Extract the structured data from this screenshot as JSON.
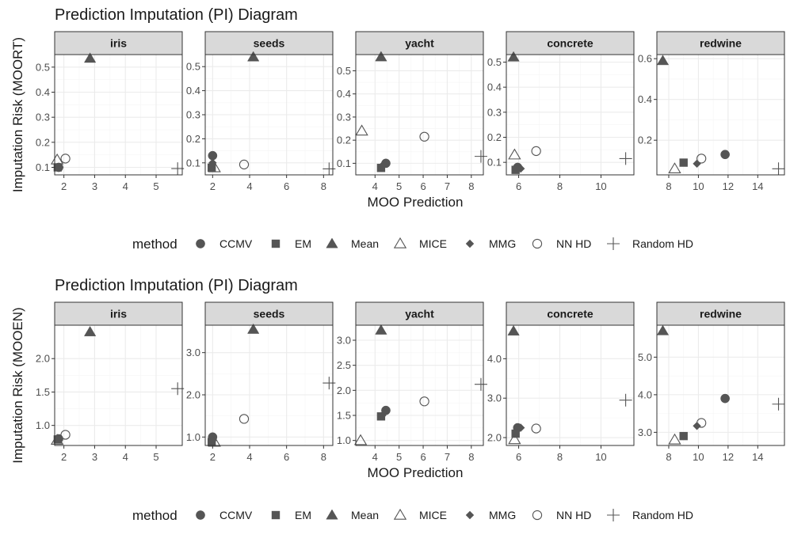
{
  "colors": {
    "point": "#555555",
    "strip": "#d9d9d9",
    "grid": "#ebebeb"
  },
  "legend": {
    "title": "method",
    "items": [
      {
        "label": "CCMV",
        "shape": "circle-filled"
      },
      {
        "label": "EM",
        "shape": "square-filled"
      },
      {
        "label": "Mean",
        "shape": "triangle-filled"
      },
      {
        "label": "MICE",
        "shape": "triangle-open"
      },
      {
        "label": "MMG",
        "shape": "diamond-filled"
      },
      {
        "label": "NN HD",
        "shape": "circle-open"
      },
      {
        "label": "Random HD",
        "shape": "plus"
      }
    ]
  },
  "chart_data": [
    {
      "type": "scatter",
      "title": "Prediction Imputation (PI) Diagram",
      "xlabel": "MOO Prediction",
      "ylabel": "Imputation Risk (MOORT)",
      "facets": [
        {
          "name": "iris",
          "xlim": [
            1.7,
            5.85
          ],
          "ylim": [
            0.07,
            0.55
          ],
          "xticks": [
            2,
            3,
            4,
            5
          ],
          "yticks": [
            0.1,
            0.2,
            0.3,
            0.4,
            0.5
          ],
          "ytick_labels": [
            "0.1",
            "0.2",
            "0.3",
            "0.4",
            "0.5"
          ],
          "points": [
            {
              "method": "CCMV",
              "x": 1.83,
              "y": 0.1
            },
            {
              "method": "EM",
              "x": 1.8,
              "y": 0.1
            },
            {
              "method": "Mean",
              "x": 2.85,
              "y": 0.535
            },
            {
              "method": "MICE",
              "x": 1.78,
              "y": 0.13
            },
            {
              "method": "MMG",
              "x": 1.86,
              "y": 0.1
            },
            {
              "method": "NN HD",
              "x": 2.05,
              "y": 0.135
            },
            {
              "method": "Random HD",
              "x": 5.7,
              "y": 0.095
            }
          ]
        },
        {
          "name": "seeds",
          "xlim": [
            1.6,
            8.5
          ],
          "ylim": [
            0.05,
            0.55
          ],
          "xticks": [
            2,
            4,
            6,
            8
          ],
          "yticks": [
            0.1,
            0.2,
            0.3,
            0.4,
            0.5
          ],
          "ytick_labels": [
            "0.1",
            "0.2",
            "0.3",
            "0.4",
            "0.5"
          ],
          "points": [
            {
              "method": "CCMV",
              "x": 2.0,
              "y": 0.13
            },
            {
              "method": "EM",
              "x": 1.95,
              "y": 0.08
            },
            {
              "method": "Mean",
              "x": 4.2,
              "y": 0.54
            },
            {
              "method": "MICE",
              "x": 2.1,
              "y": 0.08
            },
            {
              "method": "MMG",
              "x": 2.0,
              "y": 0.1
            },
            {
              "method": "NN HD",
              "x": 3.7,
              "y": 0.093
            },
            {
              "method": "Random HD",
              "x": 8.3,
              "y": 0.075
            }
          ]
        },
        {
          "name": "yacht",
          "xlim": [
            3.2,
            8.5
          ],
          "ylim": [
            0.05,
            0.57
          ],
          "xticks": [
            4,
            5,
            6,
            7,
            8
          ],
          "yticks": [
            0.1,
            0.2,
            0.3,
            0.4,
            0.5
          ],
          "ytick_labels": [
            "0.1",
            "0.2",
            "0.3",
            "0.4",
            "0.5"
          ],
          "points": [
            {
              "method": "CCMV",
              "x": 4.45,
              "y": 0.1
            },
            {
              "method": "EM",
              "x": 4.25,
              "y": 0.08
            },
            {
              "method": "Mean",
              "x": 4.25,
              "y": 0.56
            },
            {
              "method": "MICE",
              "x": 3.45,
              "y": 0.24
            },
            {
              "method": "MMG",
              "x": 4.3,
              "y": 0.09
            },
            {
              "method": "NN HD",
              "x": 6.05,
              "y": 0.215
            },
            {
              "method": "Random HD",
              "x": 8.4,
              "y": 0.13
            }
          ]
        },
        {
          "name": "concrete",
          "xlim": [
            5.4,
            11.6
          ],
          "ylim": [
            0.05,
            0.53
          ],
          "xticks": [
            6,
            8,
            10
          ],
          "yticks": [
            0.1,
            0.2,
            0.3,
            0.4,
            0.5
          ],
          "ytick_labels": [
            "0.1",
            "0.2",
            "0.3",
            "0.4",
            "0.5"
          ],
          "points": [
            {
              "method": "CCMV",
              "x": 5.95,
              "y": 0.08
            },
            {
              "method": "EM",
              "x": 5.85,
              "y": 0.07
            },
            {
              "method": "Mean",
              "x": 5.75,
              "y": 0.52
            },
            {
              "method": "MICE",
              "x": 5.8,
              "y": 0.13
            },
            {
              "method": "MMG",
              "x": 6.1,
              "y": 0.075
            },
            {
              "method": "NN HD",
              "x": 6.85,
              "y": 0.145
            },
            {
              "method": "Random HD",
              "x": 11.2,
              "y": 0.115
            }
          ]
        },
        {
          "name": "redwine",
          "xlim": [
            7.2,
            15.8
          ],
          "ylim": [
            0.03,
            0.62
          ],
          "xticks": [
            8,
            10,
            12,
            14
          ],
          "yticks": [
            0.2,
            0.4,
            0.6
          ],
          "ytick_labels": [
            "0.2",
            "0.4",
            "0.6"
          ],
          "points": [
            {
              "method": "CCMV",
              "x": 11.8,
              "y": 0.13
            },
            {
              "method": "EM",
              "x": 9.0,
              "y": 0.09
            },
            {
              "method": "Mean",
              "x": 7.6,
              "y": 0.59
            },
            {
              "method": "MICE",
              "x": 8.4,
              "y": 0.06
            },
            {
              "method": "MMG",
              "x": 9.9,
              "y": 0.085
            },
            {
              "method": "NN HD",
              "x": 10.2,
              "y": 0.11
            },
            {
              "method": "Random HD",
              "x": 15.4,
              "y": 0.06
            }
          ]
        }
      ]
    },
    {
      "type": "scatter",
      "title": "Prediction Imputation (PI) Diagram",
      "xlabel": "MOO Prediction",
      "ylabel": "Imputation Risk (MOOEN)",
      "facets": [
        {
          "name": "iris",
          "xlim": [
            1.7,
            5.85
          ],
          "ylim": [
            0.7,
            2.5
          ],
          "xticks": [
            2,
            3,
            4,
            5
          ],
          "yticks": [
            1.0,
            1.5,
            2.0
          ],
          "ytick_labels": [
            "1.0",
            "1.5",
            "2.0"
          ],
          "points": [
            {
              "method": "CCMV",
              "x": 1.83,
              "y": 0.8
            },
            {
              "method": "EM",
              "x": 1.8,
              "y": 0.79
            },
            {
              "method": "Mean",
              "x": 2.85,
              "y": 2.4
            },
            {
              "method": "MICE",
              "x": 1.78,
              "y": 0.78
            },
            {
              "method": "MMG",
              "x": 1.86,
              "y": 0.8
            },
            {
              "method": "NN HD",
              "x": 2.05,
              "y": 0.86
            },
            {
              "method": "Random HD",
              "x": 5.7,
              "y": 1.55
            }
          ]
        },
        {
          "name": "seeds",
          "xlim": [
            1.6,
            8.5
          ],
          "ylim": [
            0.8,
            3.65
          ],
          "xticks": [
            2,
            4,
            6,
            8
          ],
          "yticks": [
            1.0,
            2.0,
            3.0
          ],
          "ytick_labels": [
            "1.0",
            "2.0",
            "3.0"
          ],
          "points": [
            {
              "method": "CCMV",
              "x": 2.0,
              "y": 1.0
            },
            {
              "method": "EM",
              "x": 1.95,
              "y": 0.88
            },
            {
              "method": "Mean",
              "x": 4.2,
              "y": 3.55
            },
            {
              "method": "MICE",
              "x": 2.1,
              "y": 0.88
            },
            {
              "method": "MMG",
              "x": 2.0,
              "y": 0.92
            },
            {
              "method": "NN HD",
              "x": 3.7,
              "y": 1.43
            },
            {
              "method": "Random HD",
              "x": 8.3,
              "y": 2.28
            }
          ]
        },
        {
          "name": "yacht",
          "xlim": [
            3.2,
            8.5
          ],
          "ylim": [
            0.9,
            3.3
          ],
          "xticks": [
            4,
            5,
            6,
            7,
            8
          ],
          "yticks": [
            1.0,
            1.5,
            2.0,
            2.5,
            3.0
          ],
          "ytick_labels": [
            "1.0",
            "1.5",
            "2.0",
            "2.5",
            "3.0"
          ],
          "points": [
            {
              "method": "CCMV",
              "x": 4.45,
              "y": 1.6
            },
            {
              "method": "EM",
              "x": 4.25,
              "y": 1.48
            },
            {
              "method": "Mean",
              "x": 4.25,
              "y": 3.2
            },
            {
              "method": "MICE",
              "x": 3.4,
              "y": 1.0
            },
            {
              "method": "MMG",
              "x": 4.3,
              "y": 1.5
            },
            {
              "method": "NN HD",
              "x": 6.05,
              "y": 1.78
            },
            {
              "method": "Random HD",
              "x": 8.4,
              "y": 2.12
            }
          ]
        },
        {
          "name": "concrete",
          "xlim": [
            5.4,
            11.6
          ],
          "ylim": [
            1.8,
            4.85
          ],
          "xticks": [
            6,
            8,
            10
          ],
          "yticks": [
            2.0,
            3.0,
            4.0
          ],
          "ytick_labels": [
            "2.0",
            "3.0",
            "4.0"
          ],
          "points": [
            {
              "method": "CCMV",
              "x": 5.95,
              "y": 2.25
            },
            {
              "method": "EM",
              "x": 5.85,
              "y": 2.1
            },
            {
              "method": "Mean",
              "x": 5.75,
              "y": 4.7
            },
            {
              "method": "MICE",
              "x": 5.8,
              "y": 1.95
            },
            {
              "method": "MMG",
              "x": 6.1,
              "y": 2.25
            },
            {
              "method": "NN HD",
              "x": 6.85,
              "y": 2.23
            },
            {
              "method": "Random HD",
              "x": 11.2,
              "y": 2.95
            }
          ]
        },
        {
          "name": "redwine",
          "xlim": [
            7.2,
            15.8
          ],
          "ylim": [
            2.65,
            5.85
          ],
          "xticks": [
            8,
            10,
            12,
            14
          ],
          "yticks": [
            3.0,
            4.0,
            5.0
          ],
          "ytick_labels": [
            "3.0",
            "4.0",
            "5.0"
          ],
          "points": [
            {
              "method": "CCMV",
              "x": 11.8,
              "y": 3.9
            },
            {
              "method": "EM",
              "x": 9.0,
              "y": 2.9
            },
            {
              "method": "Mean",
              "x": 7.6,
              "y": 5.7
            },
            {
              "method": "MICE",
              "x": 8.4,
              "y": 2.8
            },
            {
              "method": "MMG",
              "x": 9.9,
              "y": 3.17
            },
            {
              "method": "NN HD",
              "x": 10.2,
              "y": 3.25
            },
            {
              "method": "Random HD",
              "x": 15.4,
              "y": 3.75
            }
          ]
        }
      ]
    }
  ]
}
